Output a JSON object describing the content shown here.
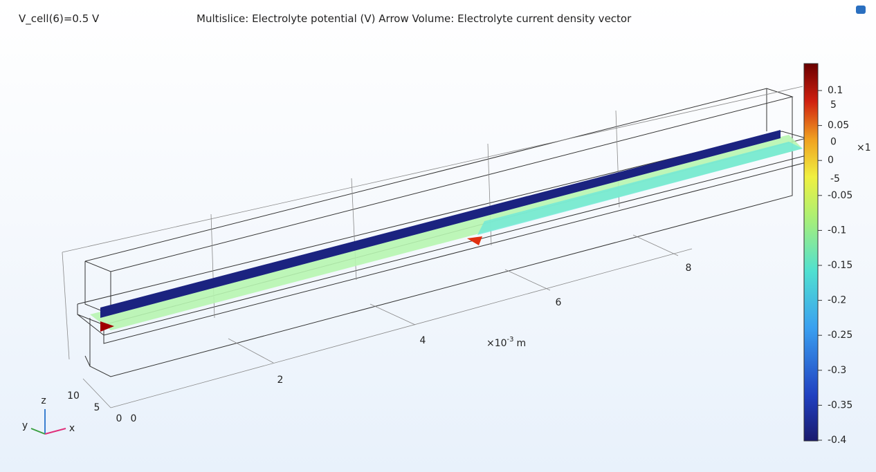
{
  "header": {
    "parameter": "V_cell(6)=0.5 V",
    "title": "Multislice: Electrolyte potential (V)  Arrow Volume: Electrolyte current density vector"
  },
  "colorbar": {
    "ticks": [
      "0.1",
      "0.05",
      "0",
      "-0.05",
      "-0.1",
      "-0.15",
      "-0.2",
      "-0.25",
      "-0.3",
      "-0.35",
      "-0.4"
    ],
    "arrow_ticks": [
      "5",
      "0",
      "-5"
    ],
    "arrow_scale": "×1"
  },
  "x_axis": {
    "ticks": [
      "2",
      "4",
      "6",
      "8"
    ],
    "unit_base": "×10",
    "unit_exp": "-3",
    "unit": "m"
  },
  "y_axis": {
    "ticks": [
      "10",
      "5",
      "0",
      "0"
    ]
  },
  "triad": {
    "z": "z",
    "y": "y",
    "x": "x"
  }
}
